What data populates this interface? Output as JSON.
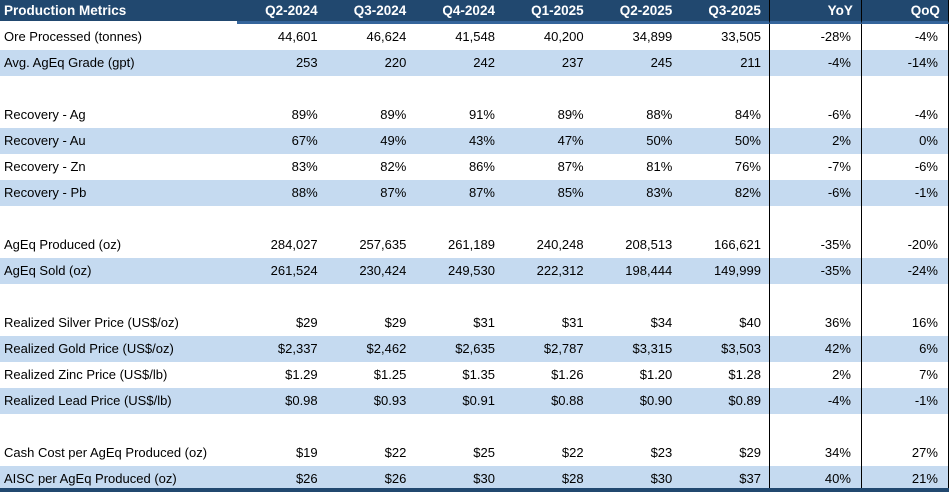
{
  "header": {
    "title": "Production Metrics"
  },
  "columns": [
    "Q2-2024",
    "Q3-2024",
    "Q4-2024",
    "Q1-2025",
    "Q2-2025",
    "Q3-2025",
    "YoY",
    "QoQ"
  ],
  "rows": [
    {
      "label": "Ore Processed (tonnes)",
      "values": [
        "44,601",
        "46,624",
        "41,548",
        "40,200",
        "34,899",
        "33,505"
      ],
      "yoy": "-28%",
      "qoq": "-4%",
      "shaded": false
    },
    {
      "label": "Avg. AgEq Grade (gpt)",
      "values": [
        "253",
        "220",
        "242",
        "237",
        "245",
        "211"
      ],
      "yoy": "-4%",
      "qoq": "-14%",
      "shaded": true
    },
    {
      "spacer": true
    },
    {
      "label": "Recovery - Ag",
      "values": [
        "89%",
        "89%",
        "91%",
        "89%",
        "88%",
        "84%"
      ],
      "yoy": "-6%",
      "qoq": "-4%",
      "shaded": false
    },
    {
      "label": "Recovery - Au",
      "values": [
        "67%",
        "49%",
        "43%",
        "47%",
        "50%",
        "50%"
      ],
      "yoy": "2%",
      "qoq": "0%",
      "shaded": true
    },
    {
      "label": "Recovery - Zn",
      "values": [
        "83%",
        "82%",
        "86%",
        "87%",
        "81%",
        "76%"
      ],
      "yoy": "-7%",
      "qoq": "-6%",
      "shaded": false
    },
    {
      "label": "Recovery - Pb",
      "values": [
        "88%",
        "87%",
        "87%",
        "85%",
        "83%",
        "82%"
      ],
      "yoy": "-6%",
      "qoq": "-1%",
      "shaded": true
    },
    {
      "spacer": true
    },
    {
      "label": "AgEq Produced (oz)",
      "values": [
        "284,027",
        "257,635",
        "261,189",
        "240,248",
        "208,513",
        "166,621"
      ],
      "yoy": "-35%",
      "qoq": "-20%",
      "shaded": false
    },
    {
      "label": "AgEq Sold (oz)",
      "values": [
        "261,524",
        "230,424",
        "249,530",
        "222,312",
        "198,444",
        "149,999"
      ],
      "yoy": "-35%",
      "qoq": "-24%",
      "shaded": true
    },
    {
      "spacer": true
    },
    {
      "label": "Realized Silver Price (US$/oz)",
      "values": [
        "$29",
        "$29",
        "$31",
        "$31",
        "$34",
        "$40"
      ],
      "yoy": "36%",
      "qoq": "16%",
      "shaded": false
    },
    {
      "label": "Realized Gold Price (US$/oz)",
      "values": [
        "$2,337",
        "$2,462",
        "$2,635",
        "$2,787",
        "$3,315",
        "$3,503"
      ],
      "yoy": "42%",
      "qoq": "6%",
      "shaded": true
    },
    {
      "label": "Realized Zinc Price (US$/lb)",
      "values": [
        "$1.29",
        "$1.25",
        "$1.35",
        "$1.26",
        "$1.20",
        "$1.28"
      ],
      "yoy": "2%",
      "qoq": "7%",
      "shaded": false
    },
    {
      "label": "Realized Lead Price (US$/lb)",
      "values": [
        "$0.98",
        "$0.93",
        "$0.91",
        "$0.88",
        "$0.90",
        "$0.89"
      ],
      "yoy": "-4%",
      "qoq": "-1%",
      "shaded": true
    },
    {
      "spacer": true
    },
    {
      "label": "Cash Cost per AgEq Produced (oz)",
      "values": [
        "$19",
        "$22",
        "$25",
        "$22",
        "$23",
        "$29"
      ],
      "yoy": "34%",
      "qoq": "27%",
      "shaded": false
    },
    {
      "label": "AISC per AgEq Produced (oz)",
      "values": [
        "$26",
        "$26",
        "$30",
        "$28",
        "$30",
        "$37"
      ],
      "yoy": "40%",
      "qoq": "21%",
      "shaded": true
    }
  ],
  "colors": {
    "header_bg": "#21486F",
    "header_underline": "#35659B",
    "header_text": "#FFFFFF",
    "band_row_bg": "#C5DAF0",
    "column_divider": "#000000",
    "body_text": "#000000"
  }
}
